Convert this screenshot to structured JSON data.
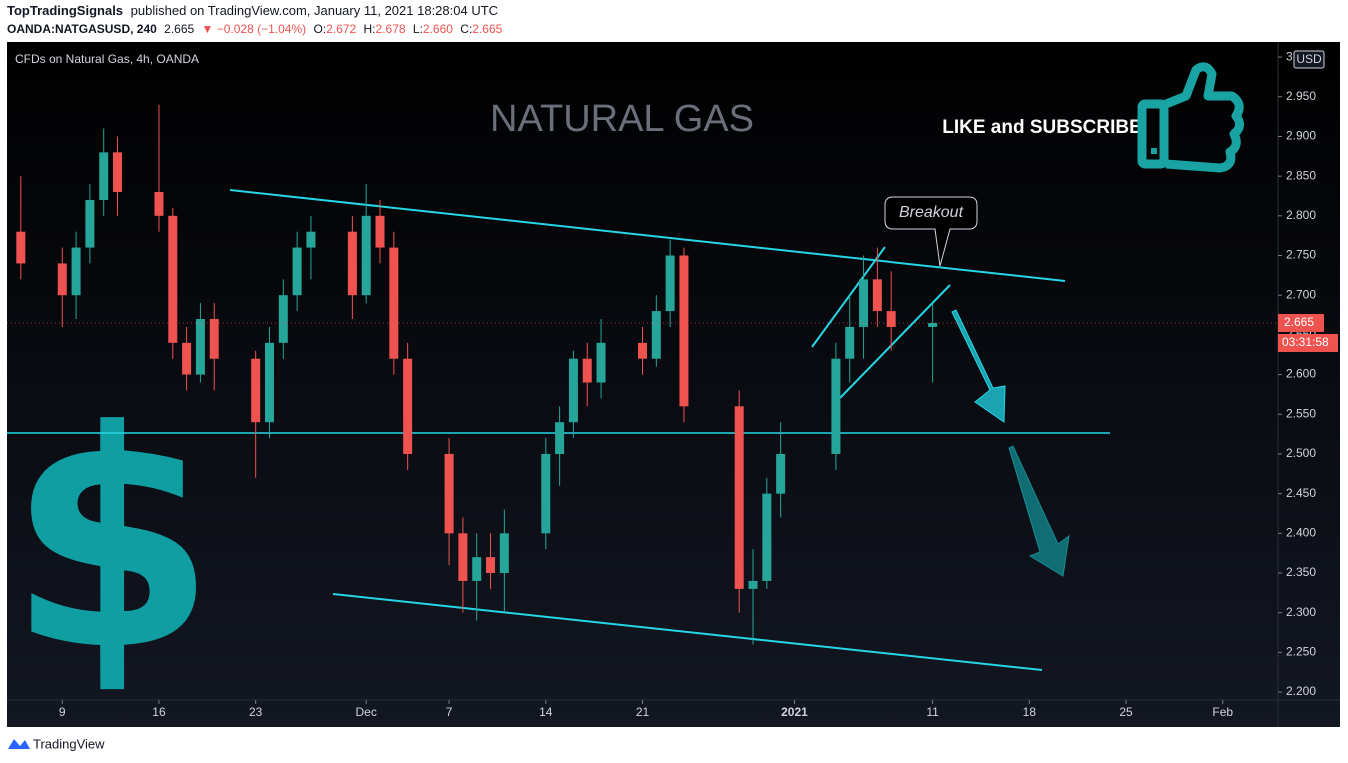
{
  "header": {
    "author": "TopTradingSignals",
    "published": "published on TradingView.com, January 11, 2021 18:28:04 UTC",
    "symbol": "OANDA:NATGASUSD, 240",
    "last": "2.665",
    "change": "▼ −0.028 (−1.04%)",
    "ohlc": [
      {
        "label": "O:",
        "value": "2.672"
      },
      {
        "label": "H:",
        "value": "2.678"
      },
      {
        "label": "L:",
        "value": "2.660"
      },
      {
        "label": "C:",
        "value": "2.665"
      }
    ]
  },
  "chart_data": {
    "type": "candlestick",
    "title": "CFDs on Natural Gas, 4h, OANDA",
    "annotations": {
      "headline": "NATURAL GAS",
      "cta": "LIKE and SUBSCRIBE",
      "callout": "Breakout",
      "icon": "$"
    },
    "currency": "USD",
    "last_price": 2.665,
    "countdown": "03:31:58",
    "up_color": "#26a69a",
    "down_color": "#ef5350",
    "x": [
      "2020-11-06",
      "2020-11-09",
      "2020-11-10",
      "2020-11-11",
      "2020-11-12",
      "2020-11-13",
      "2020-11-16",
      "2020-11-17",
      "2020-11-18",
      "2020-11-19",
      "2020-11-20",
      "2020-11-23",
      "2020-11-24",
      "2020-11-25",
      "2020-11-26",
      "2020-11-27",
      "2020-11-30",
      "2020-12-01",
      "2020-12-02",
      "2020-12-03",
      "2020-12-04",
      "2020-12-07",
      "2020-12-08",
      "2020-12-09",
      "2020-12-10",
      "2020-12-11",
      "2020-12-14",
      "2020-12-15",
      "2020-12-16",
      "2020-12-17",
      "2020-12-18",
      "2020-12-21",
      "2020-12-22",
      "2020-12-23",
      "2020-12-24",
      "2020-12-28",
      "2020-12-29",
      "2020-12-30",
      "2020-12-31",
      "2021-01-04",
      "2021-01-05",
      "2021-01-06",
      "2021-01-07",
      "2021-01-08",
      "2021-01-11"
    ],
    "open": [
      2.78,
      2.74,
      2.7,
      2.76,
      2.82,
      2.88,
      2.83,
      2.8,
      2.64,
      2.6,
      2.67,
      2.62,
      2.54,
      2.64,
      2.7,
      2.76,
      2.78,
      2.7,
      2.8,
      2.76,
      2.62,
      2.5,
      2.4,
      2.34,
      2.37,
      2.35,
      2.4,
      2.5,
      2.54,
      2.62,
      2.59,
      2.64,
      2.62,
      2.68,
      2.75,
      2.56,
      2.33,
      2.34,
      2.45,
      2.5,
      2.62,
      2.66,
      2.72,
      2.68,
      2.66
    ],
    "high": [
      2.85,
      2.76,
      2.78,
      2.84,
      2.91,
      2.9,
      2.94,
      2.81,
      2.66,
      2.69,
      2.69,
      2.63,
      2.66,
      2.72,
      2.78,
      2.8,
      2.8,
      2.84,
      2.82,
      2.78,
      2.64,
      2.52,
      2.42,
      2.4,
      2.4,
      2.43,
      2.52,
      2.56,
      2.63,
      2.64,
      2.67,
      2.66,
      2.7,
      2.77,
      2.76,
      2.58,
      2.38,
      2.47,
      2.54,
      2.64,
      2.7,
      2.75,
      2.76,
      2.73,
      2.69
    ],
    "low": [
      2.72,
      2.66,
      2.67,
      2.74,
      2.8,
      2.8,
      2.78,
      2.62,
      2.58,
      2.59,
      2.58,
      2.47,
      2.52,
      2.62,
      2.68,
      2.72,
      2.67,
      2.69,
      2.74,
      2.6,
      2.48,
      2.36,
      2.3,
      2.29,
      2.33,
      2.3,
      2.38,
      2.46,
      2.52,
      2.56,
      2.57,
      2.6,
      2.61,
      2.66,
      2.54,
      2.3,
      2.26,
      2.33,
      2.42,
      2.48,
      2.59,
      2.62,
      2.66,
      2.63,
      2.59
    ],
    "close": [
      2.74,
      2.7,
      2.76,
      2.82,
      2.88,
      2.83,
      2.8,
      2.64,
      2.6,
      2.67,
      2.62,
      2.54,
      2.64,
      2.7,
      2.76,
      2.78,
      2.7,
      2.8,
      2.76,
      2.62,
      2.5,
      2.4,
      2.34,
      2.37,
      2.35,
      2.4,
      2.5,
      2.54,
      2.62,
      2.59,
      2.64,
      2.62,
      2.68,
      2.75,
      2.56,
      2.33,
      2.34,
      2.45,
      2.5,
      2.62,
      2.66,
      2.72,
      2.68,
      2.66,
      2.665
    ],
    "xlim": [
      "2020-11-05",
      "2021-02-05"
    ],
    "xticks": [
      {
        "value": "2020-11-09",
        "label": "9"
      },
      {
        "value": "2020-11-16",
        "label": "16"
      },
      {
        "value": "2020-11-23",
        "label": "23"
      },
      {
        "value": "2020-12-01",
        "label": "Dec"
      },
      {
        "value": "2020-12-07",
        "label": "7"
      },
      {
        "value": "2020-12-14",
        "label": "14"
      },
      {
        "value": "2020-12-21",
        "label": "21"
      },
      {
        "value": "2021-01-01",
        "label": "2021"
      },
      {
        "value": "2021-01-11",
        "label": "11"
      },
      {
        "value": "2021-01-18",
        "label": "18"
      },
      {
        "value": "2021-01-25",
        "label": "25"
      },
      {
        "value": "2021-02-01",
        "label": "Feb"
      }
    ],
    "ylim": [
      2.19,
      3.019
    ],
    "yticks": [
      {
        "value": 2.2,
        "label": "2.200"
      },
      {
        "value": 2.25,
        "label": "2.250"
      },
      {
        "value": 2.3,
        "label": "2.300"
      },
      {
        "value": 2.35,
        "label": "2.350"
      },
      {
        "value": 2.4,
        "label": "2.400"
      },
      {
        "value": 2.45,
        "label": "2.450"
      },
      {
        "value": 2.5,
        "label": "2.500"
      },
      {
        "value": 2.55,
        "label": "2.550"
      },
      {
        "value": 2.6,
        "label": "2.600"
      },
      {
        "value": 2.65,
        "label": "2.650"
      },
      {
        "value": 2.7,
        "label": "2.700"
      },
      {
        "value": 2.75,
        "label": "2.750"
      },
      {
        "value": 2.8,
        "label": "2.800"
      },
      {
        "value": 2.85,
        "label": "2.850"
      },
      {
        "value": 2.9,
        "label": "2.900"
      },
      {
        "value": 2.95,
        "label": "2.950"
      },
      3
    ]
  },
  "footer": {
    "brand": "TradingView"
  }
}
